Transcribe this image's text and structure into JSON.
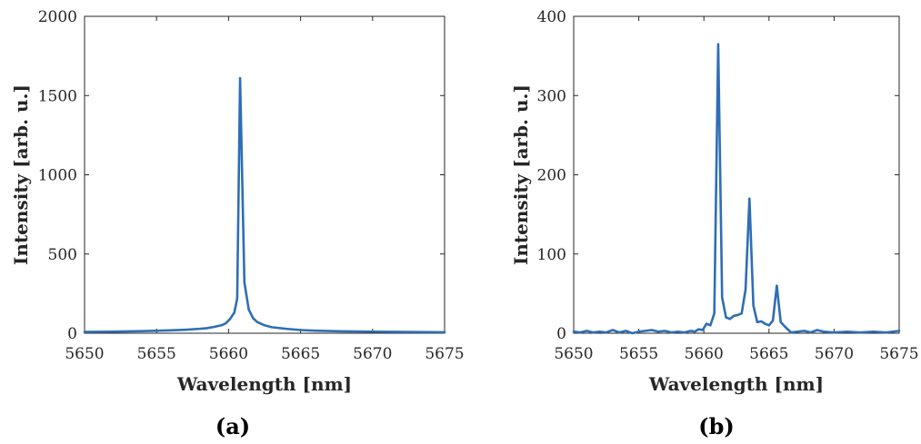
{
  "colors": {
    "series": "#2e6eb5",
    "axes": "#262626"
  },
  "chart_data": [
    {
      "type": "line",
      "panel_label": "(a)",
      "xlabel": "Wavelength [nm]",
      "ylabel": "Intensity [arb. u.]",
      "xlim": [
        5650,
        5675
      ],
      "ylim": [
        0,
        2000
      ],
      "xticks": [
        5650,
        5655,
        5660,
        5665,
        5670,
        5675
      ],
      "yticks": [
        0,
        500,
        1000,
        1500,
        2000
      ],
      "grid": false,
      "series": [
        {
          "x": [
            5650,
            5652,
            5654,
            5656,
            5657,
            5658,
            5658.5,
            5659,
            5659.5,
            5659.8,
            5660.1,
            5660.4,
            5660.6,
            5660.8,
            5661.1,
            5661.4,
            5661.7,
            5662,
            5662.5,
            5663,
            5664,
            5665,
            5666,
            5668,
            5670,
            5672,
            5675
          ],
          "y": [
            8,
            10,
            13,
            18,
            22,
            28,
            32,
            40,
            50,
            62,
            90,
            130,
            220,
            1610,
            320,
            150,
            95,
            70,
            50,
            38,
            28,
            20,
            16,
            12,
            10,
            8,
            6
          ]
        }
      ]
    },
    {
      "type": "line",
      "panel_label": "(b)",
      "xlabel": "Wavelength [nm]",
      "ylabel": "Intensity [arb. u.]",
      "xlim": [
        5650,
        5675
      ],
      "ylim": [
        0,
        400
      ],
      "xticks": [
        5650,
        5655,
        5660,
        5665,
        5670,
        5675
      ],
      "yticks": [
        0,
        100,
        200,
        300,
        400
      ],
      "grid": false,
      "series": [
        {
          "x": [
            5650,
            5650.5,
            5651,
            5651.5,
            5652,
            5652.5,
            5653,
            5653.5,
            5654,
            5654.5,
            5655,
            5655.5,
            5656,
            5656.5,
            5657,
            5657.5,
            5658,
            5658.5,
            5659,
            5659.3,
            5659.6,
            5659.9,
            5660.2,
            5660.5,
            5660.8,
            5661.1,
            5661.4,
            5661.7,
            5662,
            5662.3,
            5662.6,
            5662.9,
            5663.2,
            5663.5,
            5663.8,
            5664.1,
            5664.4,
            5664.7,
            5665,
            5665.3,
            5665.6,
            5665.9,
            5666.3,
            5666.7,
            5667.2,
            5667.7,
            5668.2,
            5668.7,
            5669.2,
            5670,
            5671,
            5672,
            5673,
            5674,
            5675
          ],
          "y": [
            2,
            1,
            3,
            1,
            2,
            1,
            4,
            1,
            3,
            0,
            2,
            3,
            4,
            2,
            3,
            1,
            2,
            1,
            3,
            2,
            5,
            4,
            12,
            10,
            25,
            365,
            45,
            20,
            18,
            22,
            23,
            25,
            55,
            170,
            35,
            14,
            15,
            12,
            10,
            16,
            60,
            14,
            7,
            1,
            2,
            3,
            1,
            4,
            2,
            1,
            2,
            1,
            2,
            1,
            3
          ]
        }
      ]
    }
  ]
}
